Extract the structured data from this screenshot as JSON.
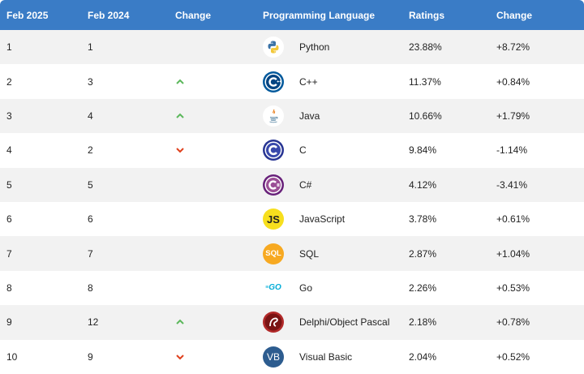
{
  "header": {
    "col1": "Feb 2025",
    "col2": "Feb 2024",
    "col3": "Change",
    "col4": "Programming Language",
    "col5": "Ratings",
    "col6": "Change"
  },
  "rows": [
    {
      "rank2025": "1",
      "rank2024": "1",
      "trend": "none",
      "language": "Python",
      "logo_icon": "python-logo-icon",
      "rating": "23.88%",
      "change": "+8.72%"
    },
    {
      "rank2025": "2",
      "rank2024": "3",
      "trend": "up",
      "language": "C++",
      "logo_icon": "cpp-logo-icon",
      "rating": "11.37%",
      "change": "+0.84%"
    },
    {
      "rank2025": "3",
      "rank2024": "4",
      "trend": "up",
      "language": "Java",
      "logo_icon": "java-logo-icon",
      "rating": "10.66%",
      "change": "+1.79%"
    },
    {
      "rank2025": "4",
      "rank2024": "2",
      "trend": "down",
      "language": "C",
      "logo_icon": "c-logo-icon",
      "rating": "9.84%",
      "change": "-1.14%"
    },
    {
      "rank2025": "5",
      "rank2024": "5",
      "trend": "none",
      "language": "C#",
      "logo_icon": "csharp-logo-icon",
      "rating": "4.12%",
      "change": "-3.41%"
    },
    {
      "rank2025": "6",
      "rank2024": "6",
      "trend": "none",
      "language": "JavaScript",
      "logo_icon": "javascript-logo-icon",
      "rating": "3.78%",
      "change": "+0.61%"
    },
    {
      "rank2025": "7",
      "rank2024": "7",
      "trend": "none",
      "language": "SQL",
      "logo_icon": "sql-logo-icon",
      "rating": "2.87%",
      "change": "+1.04%"
    },
    {
      "rank2025": "8",
      "rank2024": "8",
      "trend": "none",
      "language": "Go",
      "logo_icon": "go-logo-icon",
      "rating": "2.26%",
      "change": "+0.53%"
    },
    {
      "rank2025": "9",
      "rank2024": "12",
      "trend": "up",
      "language": "Delphi/Object Pascal",
      "logo_icon": "delphi-logo-icon",
      "rating": "2.18%",
      "change": "+0.78%"
    },
    {
      "rank2025": "10",
      "rank2024": "9",
      "trend": "down",
      "language": "Visual Basic",
      "logo_icon": "visual-basic-logo-icon",
      "rating": "2.04%",
      "change": "+0.52%"
    }
  ],
  "logos": {
    "javascript": "JS",
    "sql": "SQL",
    "go": "GO",
    "vb": "VB"
  },
  "colors": {
    "header_bg": "#3a7cc6",
    "trend_up": "#5cb85c",
    "trend_down": "#e0401c"
  }
}
